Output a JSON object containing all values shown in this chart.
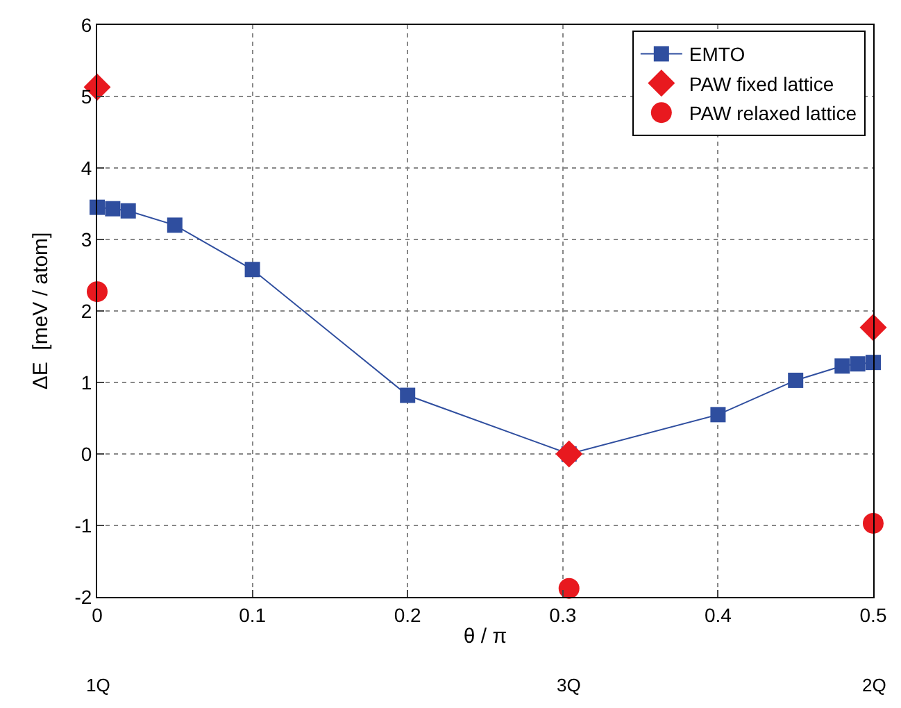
{
  "chart_data": {
    "type": "line",
    "xlabel": "θ / π",
    "ylabel": "ΔE  [meV / atom]",
    "xlim": [
      0,
      0.5
    ],
    "xticks": [
      0,
      0.1,
      0.2,
      0.3,
      0.4,
      0.5
    ],
    "ylim": [
      -2,
      6
    ],
    "yticks": [
      -2,
      -1,
      0,
      1,
      2,
      3,
      4,
      5,
      6
    ],
    "grid": true,
    "legend": "top right",
    "annotations": [
      "1Q",
      "3Q",
      "2Q"
    ],
    "series": [
      {
        "name": "EMTO",
        "marker": "square",
        "line_style": "solid",
        "color": "#2f4e9f",
        "x": [
          0,
          0.01,
          0.02,
          0.05,
          0.1,
          0.2,
          0.304,
          0.4,
          0.45,
          0.48,
          0.49,
          0.5
        ],
        "values": [
          3.45,
          3.43,
          3.4,
          3.2,
          2.58,
          0.82,
          0,
          0.55,
          1.03,
          1.23,
          1.26,
          1.28
        ]
      },
      {
        "name": "PAW fixed lattice",
        "type": "scatter",
        "marker": "diamond",
        "color": "#e8191f",
        "x": [
          0,
          0.304,
          0.5
        ],
        "values": [
          5.13,
          0,
          1.77
        ]
      },
      {
        "name": "PAW relaxed lattice",
        "type": "scatter",
        "marker": "circle",
        "color": "#e8191f",
        "x": [
          0,
          0.304,
          0.5
        ],
        "values": [
          2.27,
          -1.88,
          -0.97
        ]
      }
    ]
  }
}
